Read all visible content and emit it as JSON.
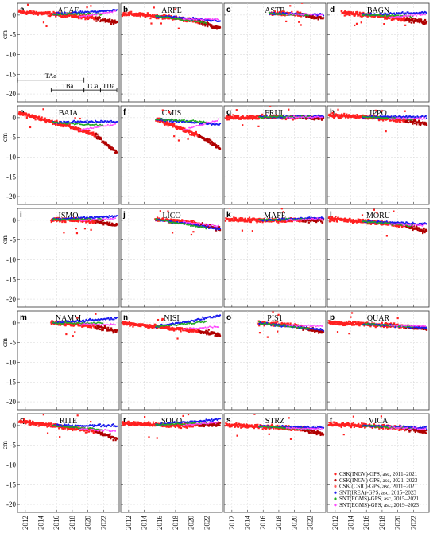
{
  "chart_data": {
    "type": "scatter",
    "ylabel": "cm",
    "xlim": [
      2011,
      2024
    ],
    "ylim": [
      -22,
      3
    ],
    "x_ticks": [
      2012,
      2014,
      2016,
      2018,
      2020,
      2022
    ],
    "y_ticks": [
      0,
      -5,
      -10,
      -15,
      -20
    ],
    "grid": true,
    "legend_position": "bottom-right of panel t",
    "legend": [
      {
        "label": "CSK(INGV)-GPS, asc, 2011–2021",
        "color": "#ff2020"
      },
      {
        "label": "CSK(INGV)-GPS, asc, 2021–2023",
        "color": "#b00000"
      },
      {
        "label": "CSK (CSIC)-GPS, asc, 2011–2021",
        "color": "#ff6060"
      },
      {
        "label": "SNT(IREA)-GPS, asc, 2015–2023",
        "color": "#1a1aee"
      },
      {
        "label": "SNT(EGMS)-GPS, asc, 2015–2021",
        "color": "#22aa22"
      },
      {
        "label": "SNT(EGMS)-GPS, asc, 2019–2023",
        "color": "#ff44ff"
      }
    ],
    "periods": [
      {
        "label": "TAa",
        "start": 2011,
        "end": 2019.5,
        "y": -16.5
      },
      {
        "label": "TBa",
        "start": 2015.3,
        "end": 2019.5,
        "y": -19.0
      },
      {
        "label": "TCa",
        "start": 2019.5,
        "end": 2021.6,
        "y": -19.0
      },
      {
        "label": "TDa",
        "start": 2021.6,
        "end": 2023.7,
        "y": -19.0
      }
    ],
    "panels": [
      {
        "letter": "a",
        "title": "ACAE",
        "start": 2011.2,
        "csk": [
          0.8,
          0.0,
          -1.6
        ],
        "end_dark": -1.8,
        "sntStart": 2015.5,
        "snt": 1.2,
        "egms": 0.3,
        "egms2": 0.9
      },
      {
        "letter": "b",
        "title": "ARFE",
        "start": 2011.2,
        "csk": [
          0.4,
          -0.6,
          -2.4
        ],
        "end_dark": -3.5,
        "sntStart": 2015.5,
        "snt": -1.5,
        "egms": -2.0,
        "egms2": -1.2
      },
      {
        "letter": "c",
        "title": "ASTR",
        "start": 2016.8,
        "csk": [
          0.4,
          0.2,
          -0.6
        ],
        "end_dark": -0.9,
        "sntStart": 2016.8,
        "snt": 0.1,
        "egms": 0.0,
        "egms2": 0.1
      },
      {
        "letter": "d",
        "title": "BAGN",
        "start": 2012.8,
        "csk": [
          0.6,
          -0.4,
          -1.8
        ],
        "end_dark": -1.8,
        "sntStart": 2015.5,
        "snt": 0.6,
        "egms": -0.3,
        "egms2": 0.2
      },
      {
        "letter": "e",
        "title": "BAIA",
        "start": 2011.2,
        "csk": [
          1.2,
          -2.2,
          -6.0
        ],
        "end_dark": -9.0,
        "sntStart": 2015.5,
        "snt": -1.0,
        "egms": -2.0,
        "egms2": -1.6
      },
      {
        "letter": "f",
        "title": "CMIS",
        "start": 2015.5,
        "csk": [
          -0.4,
          -3.5,
          -6.5
        ],
        "end_dark": -7.8,
        "sntStart": 2015.5,
        "snt": -1.8,
        "egms": -1.0,
        "egms2": -0.5
      },
      {
        "letter": "g",
        "title": "FRUL",
        "start": 2011.2,
        "csk": [
          0.0,
          0.2,
          0.0
        ],
        "end_dark": -0.3,
        "sntStart": 2015.5,
        "snt": 0.3,
        "egms": 0.2,
        "egms2": 0.2
      },
      {
        "letter": "h",
        "title": "IPPO",
        "start": 2011.2,
        "csk": [
          0.6,
          0.0,
          -1.2
        ],
        "end_dark": -1.6,
        "sntStart": 2015.5,
        "snt": 0.2,
        "egms": -0.4,
        "egms2": -0.2
      },
      {
        "letter": "i",
        "title": "ISMO",
        "start": 2015.3,
        "csk": [
          0.2,
          0.0,
          -0.8
        ],
        "end_dark": -1.2,
        "sntStart": 2015.5,
        "snt": 1.0,
        "egms": 0.3,
        "egms2": 0.4
      },
      {
        "letter": "j",
        "title": "LICO",
        "start": 2015.4,
        "csk": [
          0.3,
          -0.5,
          -1.8
        ],
        "end_dark": -2.2,
        "sntStart": 2015.4,
        "snt": -2.2,
        "egms": -2.0,
        "egms2": -1.5
      },
      {
        "letter": "k",
        "title": "MAFE",
        "start": 2011.2,
        "csk": [
          0.2,
          0.0,
          0.1
        ],
        "end_dark": 0.0,
        "sntStart": 2015.5,
        "snt": 0.6,
        "egms": 0.3,
        "egms2": 0.3
      },
      {
        "letter": "l",
        "title": "MORU",
        "start": 2011.2,
        "csk": [
          0.4,
          -0.6,
          -2.0
        ],
        "end_dark": -2.8,
        "sntStart": 2015.5,
        "snt": -0.9,
        "egms": -1.4,
        "egms2": -1.2
      },
      {
        "letter": "m",
        "title": "NAMM",
        "start": 2015.3,
        "csk": [
          0.0,
          -0.5,
          -1.8
        ],
        "end_dark": -2.2,
        "sntStart": 2015.5,
        "snt": 1.2,
        "egms": 0.0,
        "egms2": -0.4
      },
      {
        "letter": "n",
        "title": "NISI",
        "start": 2011.2,
        "csk": [
          0.0,
          -1.4,
          -2.6
        ],
        "end_dark": -3.0,
        "sntStart": 2015.5,
        "snt": 1.8,
        "egms": 0.3,
        "egms2": -0.8
      },
      {
        "letter": "o",
        "title": "PIS1",
        "start": 2015.4,
        "csk": [
          0.0,
          -0.6,
          -2.0
        ],
        "end_dark": -2.4,
        "sntStart": 2015.5,
        "snt": -1.8,
        "egms": -1.4,
        "egms2": -0.9
      },
      {
        "letter": "p",
        "title": "QUAR",
        "start": 2011.2,
        "csk": [
          0.0,
          -0.4,
          -1.2
        ],
        "end_dark": -1.5,
        "sntStart": 2015.5,
        "snt": -1.2,
        "egms": -1.0,
        "egms2": -0.8
      },
      {
        "letter": "q",
        "title": "RITE",
        "start": 2011.2,
        "csk": [
          1.0,
          -0.5,
          -2.2
        ],
        "end_dark": -3.4,
        "sntStart": 2015.5,
        "snt": 0.0,
        "egms": -1.0,
        "egms2": -1.4
      },
      {
        "letter": "r",
        "title": "SOLO",
        "start": 2011.2,
        "csk": [
          0.6,
          0.0,
          0.2
        ],
        "end_dark": 0.4,
        "sntStart": 2015.5,
        "snt": 1.6,
        "egms": 0.6,
        "egms2": 0.8
      },
      {
        "letter": "s",
        "title": "STRZ",
        "start": 2011.2,
        "csk": [
          0.2,
          -0.4,
          -1.5
        ],
        "end_dark": -2.0,
        "sntStart": 2015.5,
        "snt": -0.6,
        "egms": -1.0,
        "egms2": -0.8
      },
      {
        "letter": "t",
        "title": "VICA",
        "start": 2011.2,
        "csk": [
          0.4,
          -0.2,
          -1.2
        ],
        "end_dark": -1.6,
        "sntStart": 2015.5,
        "snt": -0.6,
        "egms": -0.8,
        "egms2": -0.9
      }
    ]
  }
}
